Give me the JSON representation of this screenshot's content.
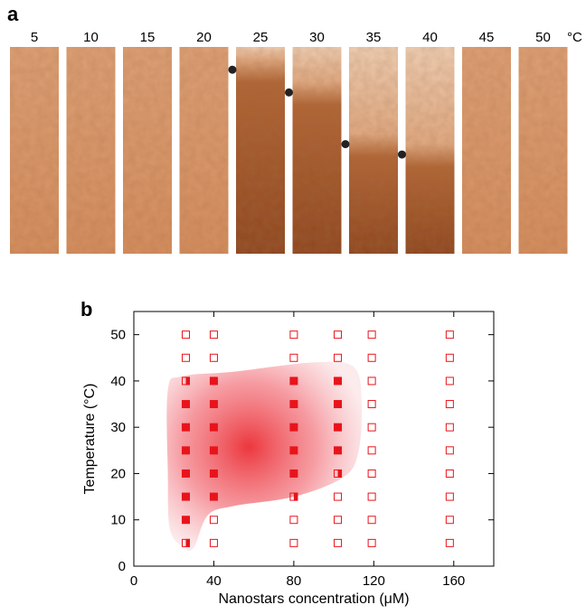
{
  "panel_a": {
    "label": "a",
    "unit": "°C",
    "strips": [
      {
        "temperature": "5",
        "boundary": null
      },
      {
        "temperature": "10",
        "boundary": null
      },
      {
        "temperature": "15",
        "boundary": null
      },
      {
        "temperature": "20",
        "boundary": null
      },
      {
        "temperature": "25",
        "boundary": 0.11
      },
      {
        "temperature": "30",
        "boundary": 0.22
      },
      {
        "temperature": "35",
        "boundary": 0.47
      },
      {
        "temperature": "40",
        "boundary": 0.52
      },
      {
        "temperature": "45",
        "boundary": null
      },
      {
        "temperature": "50",
        "boundary": null
      }
    ],
    "colors": {
      "light": "#dfa177",
      "dark": "#8f4520",
      "pale": "#f1d0b4",
      "dot": "#222222"
    }
  },
  "chart_data": {
    "type": "scatter",
    "label": "b",
    "xlabel": "Nanostars concentration (μM)",
    "ylabel": "Temperature (°C)",
    "xlim": [
      0,
      180
    ],
    "ylim": [
      0,
      55
    ],
    "xticks": [
      0,
      40,
      80,
      120,
      160
    ],
    "yticks": [
      0,
      10,
      20,
      30,
      40,
      50
    ],
    "grid": false,
    "marker_color": "#e8141b",
    "series": [
      {
        "x": 26,
        "points": [
          {
            "y": 5,
            "state": "half"
          },
          {
            "y": 10,
            "state": "filled"
          },
          {
            "y": 15,
            "state": "filled"
          },
          {
            "y": 20,
            "state": "filled"
          },
          {
            "y": 25,
            "state": "filled"
          },
          {
            "y": 30,
            "state": "filled"
          },
          {
            "y": 35,
            "state": "filled"
          },
          {
            "y": 40,
            "state": "half"
          },
          {
            "y": 45,
            "state": "open"
          },
          {
            "y": 50,
            "state": "open"
          }
        ]
      },
      {
        "x": 40,
        "points": [
          {
            "y": 5,
            "state": "open"
          },
          {
            "y": 10,
            "state": "open"
          },
          {
            "y": 15,
            "state": "filled"
          },
          {
            "y": 20,
            "state": "filled"
          },
          {
            "y": 25,
            "state": "filled"
          },
          {
            "y": 30,
            "state": "filled"
          },
          {
            "y": 35,
            "state": "filled"
          },
          {
            "y": 40,
            "state": "filled"
          },
          {
            "y": 45,
            "state": "open"
          },
          {
            "y": 50,
            "state": "open"
          }
        ]
      },
      {
        "x": 80,
        "points": [
          {
            "y": 5,
            "state": "open"
          },
          {
            "y": 10,
            "state": "open"
          },
          {
            "y": 15,
            "state": "half"
          },
          {
            "y": 20,
            "state": "filled"
          },
          {
            "y": 25,
            "state": "filled"
          },
          {
            "y": 30,
            "state": "filled"
          },
          {
            "y": 35,
            "state": "filled"
          },
          {
            "y": 40,
            "state": "filled"
          },
          {
            "y": 45,
            "state": "open"
          },
          {
            "y": 50,
            "state": "open"
          }
        ]
      },
      {
        "x": 102,
        "points": [
          {
            "y": 5,
            "state": "open"
          },
          {
            "y": 10,
            "state": "open"
          },
          {
            "y": 15,
            "state": "open"
          },
          {
            "y": 20,
            "state": "half"
          },
          {
            "y": 25,
            "state": "filled"
          },
          {
            "y": 30,
            "state": "filled"
          },
          {
            "y": 35,
            "state": "filled"
          },
          {
            "y": 40,
            "state": "filled"
          },
          {
            "y": 45,
            "state": "open"
          },
          {
            "y": 50,
            "state": "open"
          }
        ]
      },
      {
        "x": 119,
        "points": [
          {
            "y": 5,
            "state": "open"
          },
          {
            "y": 10,
            "state": "open"
          },
          {
            "y": 15,
            "state": "open"
          },
          {
            "y": 20,
            "state": "open"
          },
          {
            "y": 25,
            "state": "open"
          },
          {
            "y": 30,
            "state": "open"
          },
          {
            "y": 35,
            "state": "open"
          },
          {
            "y": 40,
            "state": "open"
          },
          {
            "y": 45,
            "state": "open"
          },
          {
            "y": 50,
            "state": "open"
          }
        ]
      },
      {
        "x": 158,
        "points": [
          {
            "y": 5,
            "state": "open"
          },
          {
            "y": 10,
            "state": "open"
          },
          {
            "y": 15,
            "state": "open"
          },
          {
            "y": 20,
            "state": "open"
          },
          {
            "y": 25,
            "state": "open"
          },
          {
            "y": 30,
            "state": "open"
          },
          {
            "y": 35,
            "state": "open"
          },
          {
            "y": 40,
            "state": "open"
          },
          {
            "y": 45,
            "state": "open"
          },
          {
            "y": 50,
            "state": "open"
          }
        ]
      }
    ],
    "region_outline": [
      [
        25,
        4
      ],
      [
        18,
        8
      ],
      [
        17,
        20
      ],
      [
        17,
        38
      ],
      [
        24,
        41
      ],
      [
        50,
        42
      ],
      [
        90,
        44
      ],
      [
        110,
        43
      ],
      [
        114,
        35
      ],
      [
        112,
        24
      ],
      [
        104,
        19
      ],
      [
        80,
        15
      ],
      [
        50,
        13
      ],
      [
        37,
        11
      ],
      [
        30,
        4
      ]
    ],
    "region_center": [
      55,
      28
    ]
  }
}
